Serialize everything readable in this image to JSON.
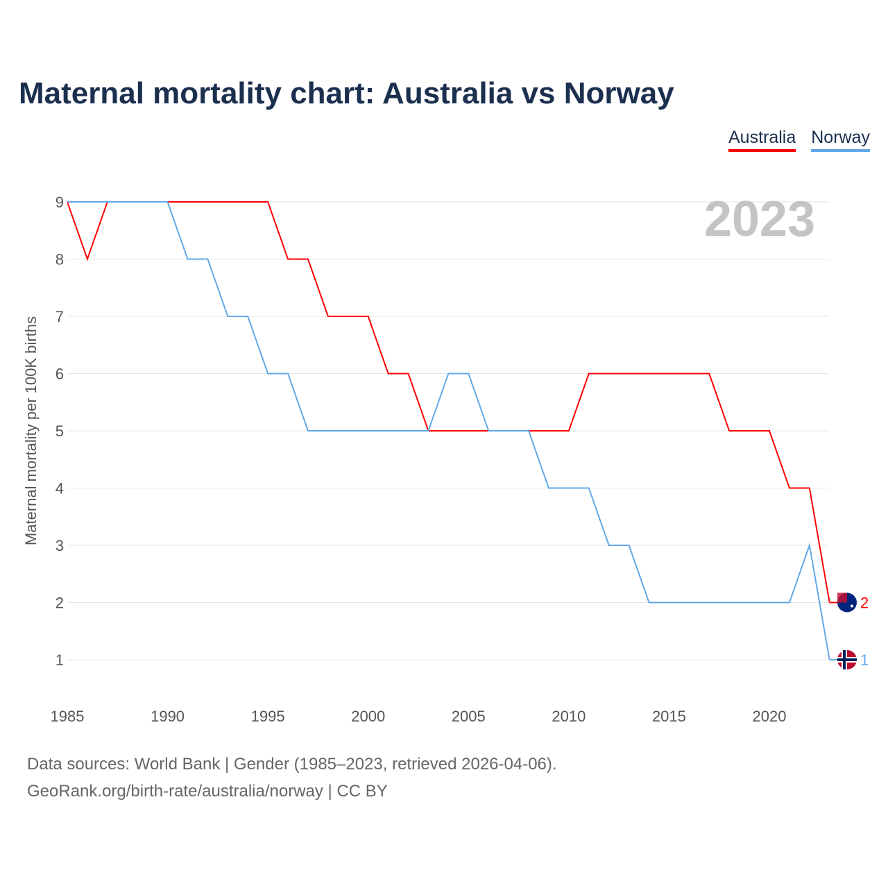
{
  "title": "Maternal mortality chart: Australia vs Norway",
  "year_label": "2023",
  "footer": {
    "line1": "Data sources: World Bank | Gender (1985–2023, retrieved 2026-04-06).",
    "line2": "GeoRank.org/birth-rate/australia/norway | CC BY"
  },
  "chart_data": {
    "type": "line",
    "title": "Maternal mortality chart: Australia vs Norway",
    "xlabel": "",
    "ylabel": "Maternal mortality per 100K births",
    "xlim": [
      1985,
      2023
    ],
    "ylim": [
      1,
      9
    ],
    "x_ticks": [
      1985,
      1990,
      1995,
      2000,
      2005,
      2010,
      2015,
      2020
    ],
    "y_ticks": [
      1,
      2,
      3,
      4,
      5,
      6,
      7,
      8,
      9
    ],
    "grid": true,
    "legend_position": "top-right",
    "x": [
      1985,
      1986,
      1987,
      1988,
      1989,
      1990,
      1991,
      1992,
      1993,
      1994,
      1995,
      1996,
      1997,
      1998,
      1999,
      2000,
      2001,
      2002,
      2003,
      2004,
      2005,
      2006,
      2007,
      2008,
      2009,
      2010,
      2011,
      2012,
      2013,
      2014,
      2015,
      2016,
      2017,
      2018,
      2019,
      2020,
      2021,
      2022,
      2023
    ],
    "series": [
      {
        "name": "Australia",
        "color": "#ff0000",
        "end_label": "2",
        "values": [
          9,
          8,
          9,
          9,
          9,
          9,
          9,
          9,
          9,
          9,
          9,
          8,
          8,
          7,
          7,
          7,
          6,
          6,
          5,
          5,
          5,
          5,
          5,
          5,
          5,
          5,
          6,
          6,
          6,
          6,
          6,
          6,
          6,
          5,
          5,
          5,
          4,
          4,
          2
        ]
      },
      {
        "name": "Norway",
        "color": "#62a8e8",
        "end_label": "1",
        "values": [
          9,
          9,
          9,
          9,
          9,
          9,
          8,
          8,
          7,
          7,
          6,
          6,
          5,
          5,
          5,
          5,
          5,
          5,
          5,
          6,
          6,
          5,
          5,
          5,
          4,
          4,
          4,
          3,
          3,
          2,
          2,
          2,
          2,
          2,
          2,
          2,
          2,
          3,
          1
        ]
      }
    ]
  }
}
